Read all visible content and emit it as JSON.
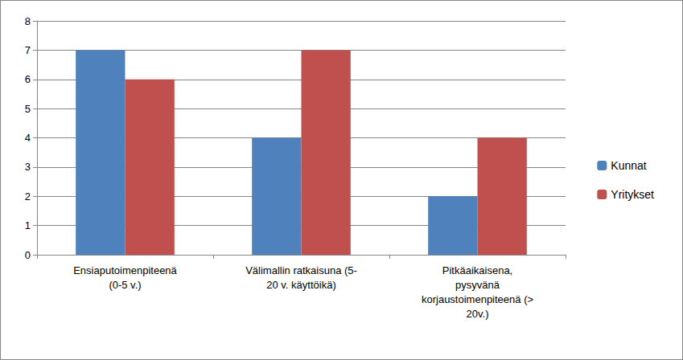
{
  "chart_data": {
    "type": "bar",
    "categories": [
      "Ensiaputoimenpiteenä\n(0-5 v.)",
      "Välimallin ratkaisuna (5-\n20 v. käyttöikä)",
      "Pitkäaikaisena,\npysyvänä\nkorjaustoimenpiteenä (>\n20v.)"
    ],
    "series": [
      {
        "name": "Kunnat",
        "color": "#4f81bd",
        "values": [
          7,
          4,
          2
        ]
      },
      {
        "name": "Yritykset",
        "color": "#c0504d",
        "values": [
          6,
          7,
          4
        ]
      }
    ],
    "ylim": [
      0,
      8
    ],
    "yticks": [
      0,
      1,
      2,
      3,
      4,
      5,
      6,
      7,
      8
    ],
    "grid": true,
    "legend": "right"
  }
}
